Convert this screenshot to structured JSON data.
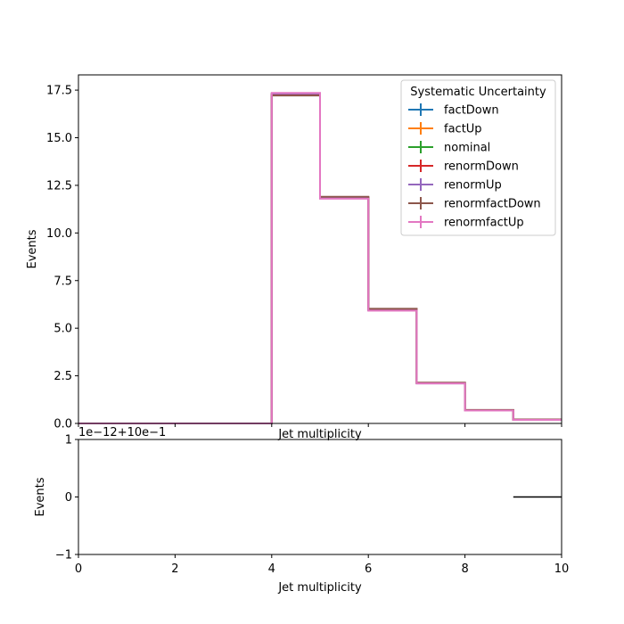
{
  "chart_data": [
    {
      "type": "line",
      "step": "post",
      "ylabel": "Events",
      "xlabel": "Jet multiplicity",
      "xlim": [
        0,
        10
      ],
      "ylim": [
        0,
        18.3
      ],
      "x_ticks": [
        0,
        2,
        4,
        6,
        8,
        10
      ],
      "y_ticks": [
        0.0,
        2.5,
        5.0,
        7.5,
        10.0,
        12.5,
        15.0,
        17.5
      ],
      "y_tick_labels": [
        "0.0",
        "2.5",
        "5.0",
        "7.5",
        "10.0",
        "12.5",
        "15.0",
        "17.5"
      ],
      "bin_edges": [
        0,
        1,
        2,
        3,
        4,
        5,
        6,
        7,
        8,
        9,
        10
      ],
      "legend_title": "Systematic Uncertainty",
      "legend_position": "upper right",
      "series": [
        {
          "name": "factDown",
          "color": "#1f77b4",
          "values": [
            0,
            0,
            0,
            0,
            17.28,
            11.86,
            5.98,
            2.12,
            0.7,
            0.2
          ]
        },
        {
          "name": "factUp",
          "color": "#ff7f0e",
          "values": [
            0,
            0,
            0,
            0,
            17.3,
            11.84,
            5.96,
            2.11,
            0.69,
            0.2
          ]
        },
        {
          "name": "nominal",
          "color": "#2ca02c",
          "values": [
            0,
            0,
            0,
            0,
            17.29,
            11.85,
            5.97,
            2.12,
            0.7,
            0.2
          ]
        },
        {
          "name": "renormDown",
          "color": "#d62728",
          "values": [
            0,
            0,
            0,
            0,
            17.25,
            11.88,
            6.0,
            2.13,
            0.7,
            0.2
          ]
        },
        {
          "name": "renormUp",
          "color": "#9467bd",
          "values": [
            0,
            0,
            0,
            0,
            17.32,
            11.82,
            5.94,
            2.1,
            0.69,
            0.2
          ]
        },
        {
          "name": "renormfactDown",
          "color": "#8c564b",
          "values": [
            0,
            0,
            0,
            0,
            17.22,
            11.9,
            6.02,
            2.14,
            0.71,
            0.21
          ]
        },
        {
          "name": "renormfactUp",
          "color": "#e377c2",
          "values": [
            0,
            0,
            0,
            0,
            17.35,
            11.8,
            5.92,
            2.1,
            0.68,
            0.19
          ]
        }
      ]
    },
    {
      "type": "line",
      "ylabel": "Events",
      "xlabel": "Jet multiplicity",
      "xlim": [
        0,
        10
      ],
      "ylim": [
        -1,
        1
      ],
      "x_ticks": [
        0,
        2,
        4,
        6,
        8,
        10
      ],
      "y_ticks": [
        -1,
        0,
        1
      ],
      "y_tick_labels": [
        "−1",
        "0",
        "1"
      ],
      "offset_text": "1e−12+10e−1",
      "series": [
        {
          "color": "#000000",
          "segments": [
            {
              "x": [
                9,
                10
              ],
              "y": [
                0,
                0
              ]
            }
          ]
        }
      ]
    }
  ],
  "top_xlabel_text": "Jet multiplicity"
}
